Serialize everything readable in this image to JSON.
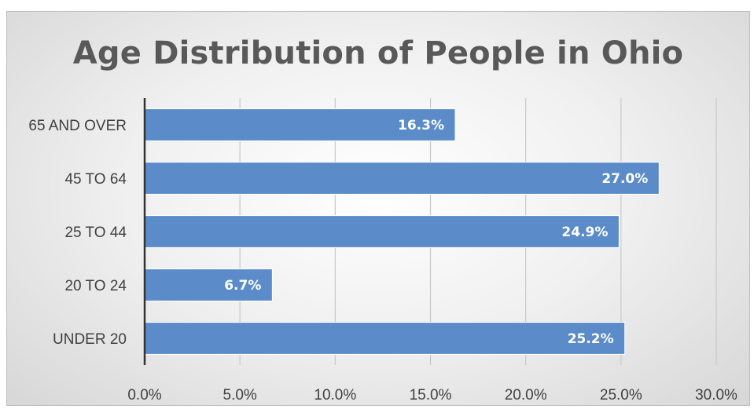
{
  "chart_data": {
    "type": "bar",
    "orientation": "horizontal",
    "title": "Age Distribution of People in Ohio",
    "xlabel": "",
    "ylabel": "",
    "categories": [
      "UNDER 20",
      "20 TO 24",
      "25 TO 44",
      "45 TO 64",
      "65 AND OVER"
    ],
    "values": [
      25.2,
      6.7,
      24.9,
      27.0,
      16.3
    ],
    "data_labels": [
      "25.2%",
      "6.7%",
      "24.9%",
      "27.0%",
      "16.3%"
    ],
    "xlim": [
      0,
      30
    ],
    "x_ticks": [
      0,
      5,
      10,
      15,
      20,
      25,
      30
    ],
    "x_tick_labels": [
      "0.0%",
      "5.0%",
      "10.0%",
      "15.0%",
      "20.0%",
      "25.0%",
      "30.0%"
    ],
    "grid": true,
    "legend": "none",
    "bar_color": "#5b8cc9",
    "gridline_color": "#c8c8c8",
    "axis_color": "#333333"
  }
}
